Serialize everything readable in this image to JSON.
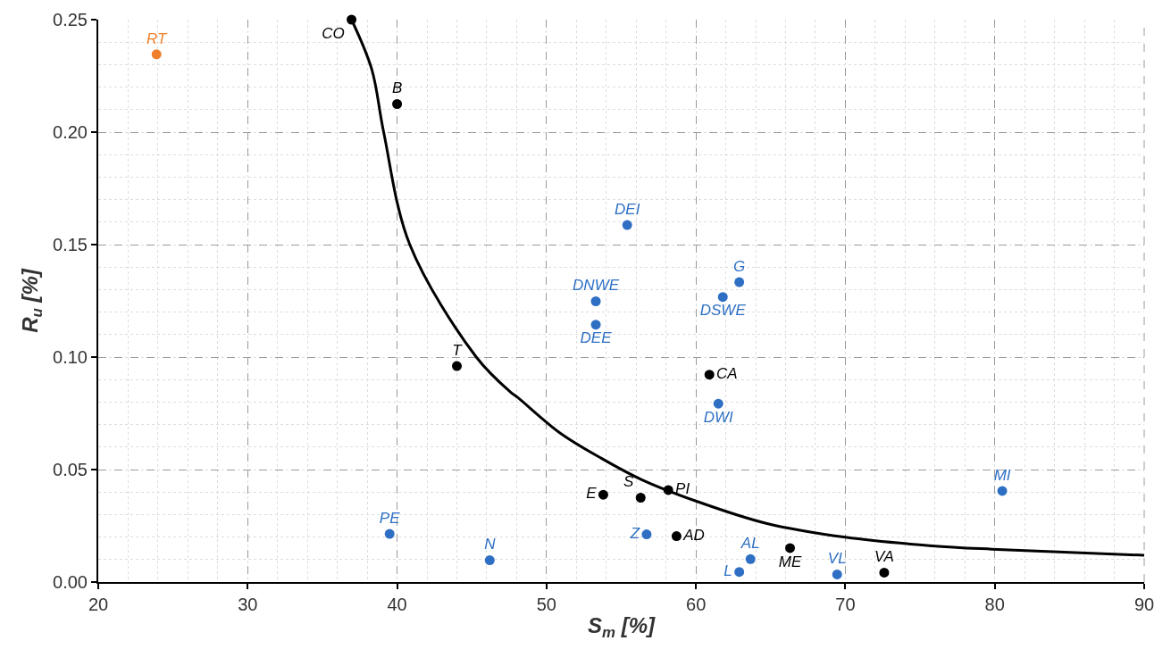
{
  "chart_data": {
    "type": "scatter",
    "xlabel": "S$_{m}$ [%]",
    "ylabel": "R$_{u}$ [%]",
    "xlim": [
      20,
      90
    ],
    "xticks": [
      20,
      30,
      40,
      50,
      60,
      70,
      80,
      90
    ],
    "ylim": [
      0,
      0.25
    ],
    "yticks": [
      {
        "value": 0,
        "label": "0.00"
      },
      {
        "value": 0.05,
        "label": "0.05"
      },
      {
        "value": 0.1,
        "label": "0.10"
      },
      {
        "value": 0.15,
        "label": "0.15"
      },
      {
        "value": 0.2,
        "label": "0.20"
      },
      {
        "value": 0.25,
        "label": "0.25"
      }
    ],
    "grid": true,
    "marker": "circle",
    "series": [
      {
        "color": "#000000",
        "x": [
          36.95,
          40.0,
          44.0,
          60.9,
          53.8,
          56.3,
          58.15,
          58.7,
          66.3,
          72.6
        ],
        "values": [
          0.25,
          0.2125,
          0.096,
          0.0922,
          0.0388,
          0.0375,
          0.0409,
          0.0204,
          0.0151,
          0.0042
        ],
        "value_labels": [
          "CO",
          "B",
          "T",
          "CA",
          "E",
          "S",
          "PI",
          "AD",
          "ME",
          "VA"
        ]
      },
      {
        "color": "#2e6fc4",
        "x": [
          55.4,
          53.3,
          53.3,
          62.9,
          61.8,
          61.5,
          80.5,
          56.7,
          63.65,
          62.9,
          69.45,
          39.5,
          46.2
        ],
        "values": [
          0.1587,
          0.1248,
          0.1144,
          0.1333,
          0.1267,
          0.0793,
          0.0405,
          0.0212,
          0.0102,
          0.0045,
          0.0034,
          0.0214,
          0.0097
        ],
        "value_labels": [
          "DEI",
          "DNWE",
          "DEE",
          "G",
          "DSWE",
          "DWI",
          "MI",
          "Z",
          "AL",
          "L",
          "VL",
          "PE",
          "N"
        ]
      },
      {
        "color": "#f07f2a",
        "x": [
          23.9
        ],
        "values": [
          0.2346
        ],
        "value_labels": [
          "RT"
        ]
      },
      {
        "type": "line",
        "color": "#000000",
        "marker": "none",
        "line_style": "solid",
        "x": [
          36.95,
          38.3,
          39.1,
          40.85,
          45.3,
          47.6,
          48.1,
          50.9,
          53.7,
          56.4,
          60,
          64.7,
          70,
          75.8,
          79.8,
          90
        ],
        "values": [
          0.25,
          0.228,
          0.2,
          0.15,
          0.1,
          0.0844,
          0.0819,
          0.0663,
          0.0549,
          0.0454,
          0.036,
          0.0261,
          0.0199,
          0.0161,
          0.0146,
          0.0119
        ]
      }
    ]
  }
}
